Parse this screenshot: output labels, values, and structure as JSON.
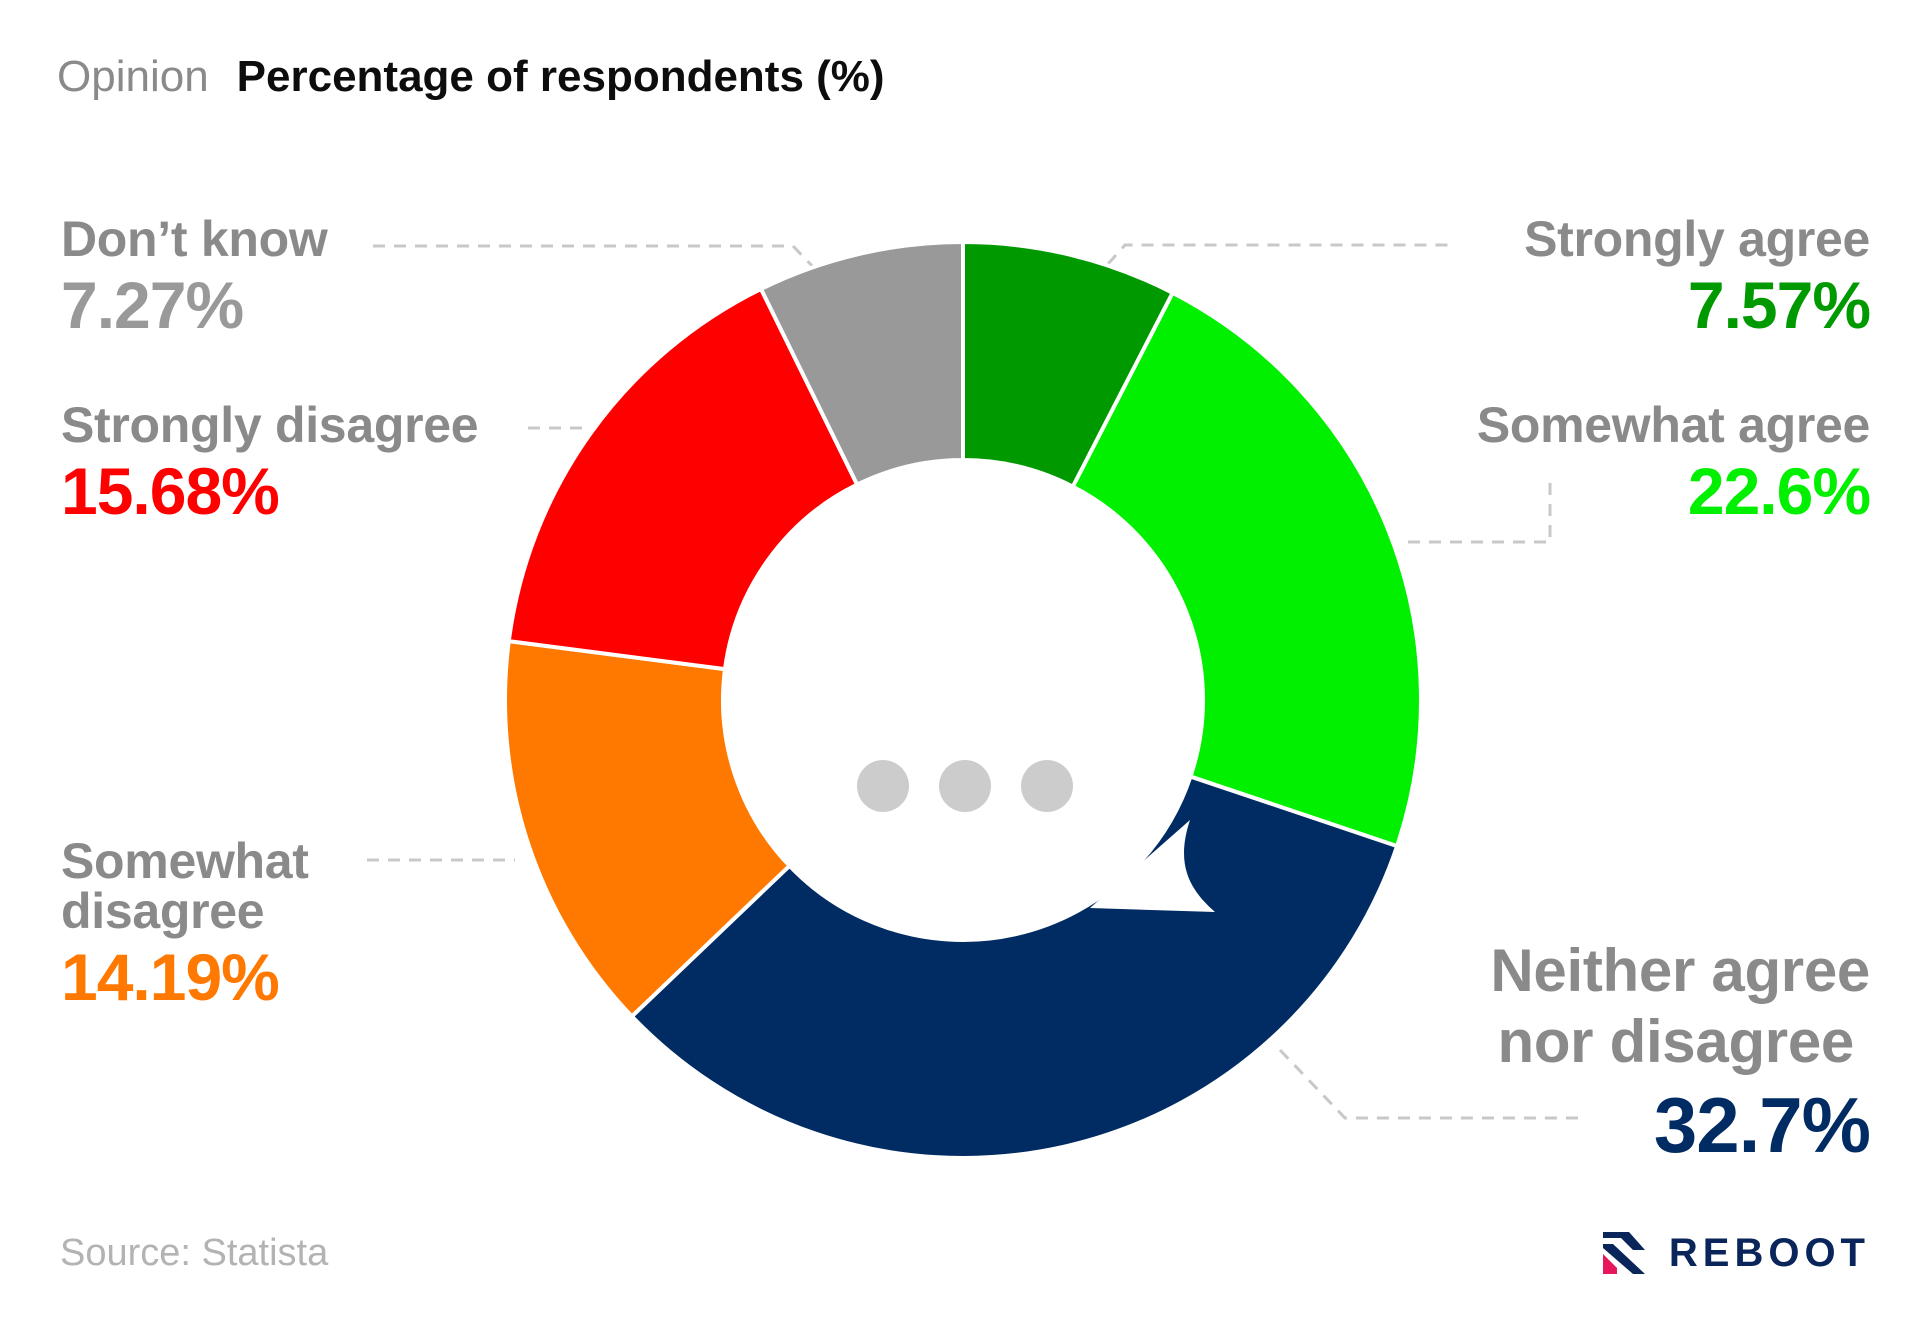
{
  "header": {
    "label": "Opinion",
    "title": "Percentage of respondents (%)"
  },
  "chart_data": {
    "type": "pie",
    "variant": "donut",
    "slices": [
      {
        "label": "Strongly agree",
        "value": 7.57,
        "display": "7.57%",
        "color": "#009a00"
      },
      {
        "label": "Somewhat agree",
        "value": 22.6,
        "display": "22.6%",
        "color": "#00f000"
      },
      {
        "label": "Neither agree nor disagree",
        "value": 32.7,
        "display": "32.7%",
        "color": "#002c63"
      },
      {
        "label": "Somewhat disagree",
        "value": 14.19,
        "display": "14.19%",
        "color": "#ff7800"
      },
      {
        "label": "Strongly disagree",
        "value": 15.68,
        "display": "15.68%",
        "color": "#ff0000"
      },
      {
        "label": "Don’t know",
        "value": 7.27,
        "display": "7.27%",
        "color": "#999999"
      }
    ],
    "start_angle": "12 o'clock",
    "direction": "clockwise",
    "center_icon": "speech-bubble-ellipsis-icon"
  },
  "labels": {
    "strongly_agree": {
      "line1": "Strongly agree"
    },
    "somewhat_agree": {
      "line1": "Somewhat agree"
    },
    "neither": {
      "line1": "Neither agree",
      "line2": "nor disagree"
    },
    "somewhat_disagree": {
      "line1": "Somewhat",
      "line2": "disagree"
    },
    "strongly_disagree": {
      "line1": "Strongly disagree"
    },
    "dont_know": {
      "line1": "Don’t know"
    }
  },
  "footer": {
    "source": "Source: Statista",
    "brand": "REBOOT",
    "brand_logo": "reboot-logo-icon"
  }
}
